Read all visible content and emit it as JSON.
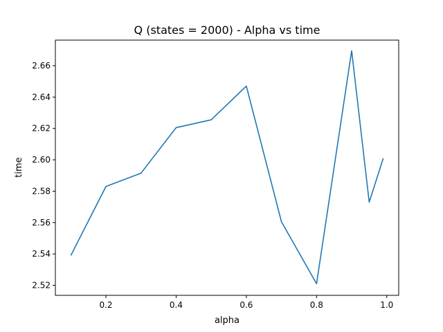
{
  "chart_data": {
    "type": "line",
    "title": "Q (states = 2000) - Alpha vs time",
    "xlabel": "alpha",
    "ylabel": "time",
    "xlim": [
      0.056,
      1.034
    ],
    "ylim": [
      2.5136,
      2.6763
    ],
    "xticks": [
      0.2,
      0.4,
      0.6,
      0.8,
      1.0
    ],
    "xtick_labels": [
      "0.2",
      "0.4",
      "0.6",
      "0.8",
      "1.0"
    ],
    "yticks": [
      2.52,
      2.54,
      2.56,
      2.58,
      2.6,
      2.62,
      2.64,
      2.66
    ],
    "ytick_labels": [
      "2.52",
      "2.54",
      "2.56",
      "2.58",
      "2.60",
      "2.62",
      "2.64",
      "2.66"
    ],
    "grid": false,
    "line_color": "#1f77b4",
    "x": [
      0.1,
      0.2,
      0.3,
      0.4,
      0.5,
      0.6,
      0.7,
      0.8,
      0.9,
      0.95,
      0.99
    ],
    "y": [
      2.539,
      2.583,
      2.5915,
      2.6205,
      2.6255,
      2.647,
      2.5605,
      2.521,
      2.6695,
      2.573,
      2.601
    ]
  }
}
